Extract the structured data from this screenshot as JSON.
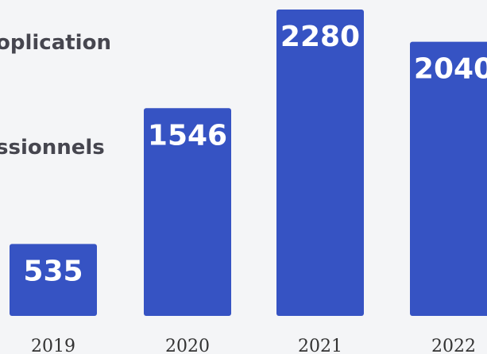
{
  "chart_data": {
    "type": "bar",
    "title": "...plication\n...ssionnels",
    "categories": [
      "2019",
      "2020",
      "2021",
      "2022"
    ],
    "values": [
      535,
      1546,
      2280,
      2040
    ],
    "ylim": [
      0,
      2400
    ],
    "grid": false,
    "colors": {
      "bar": "#3653c3",
      "bar_text": "#ffffff",
      "background": "#f4f5f7"
    }
  }
}
